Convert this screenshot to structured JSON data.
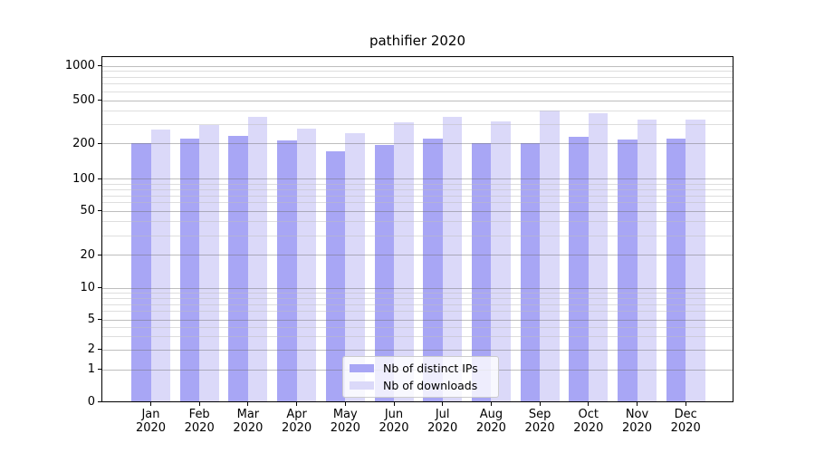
{
  "chart_data": {
    "type": "bar",
    "title": "pathifier 2020",
    "categories": [
      "Jan\n2020",
      "Feb\n2020",
      "Mar\n2020",
      "Apr\n2020",
      "May\n2020",
      "Jun\n2020",
      "Jul\n2020",
      "Aug\n2020",
      "Sep\n2020",
      "Oct\n2020",
      "Nov\n2020",
      "Dec\n2020"
    ],
    "series": [
      {
        "name": "Nb of distinct IPs",
        "color": "#a8a6f5",
        "values": [
          200,
          222,
          235,
          212,
          172,
          193,
          222,
          200,
          201,
          229,
          216,
          220
        ]
      },
      {
        "name": "Nb of downloads",
        "color": "#dbd9f9",
        "values": [
          268,
          295,
          350,
          276,
          250,
          315,
          354,
          320,
          400,
          380,
          330,
          334
        ]
      }
    ],
    "xlabel": "",
    "ylabel": "",
    "yscale": "symlog",
    "ylim": [
      0,
      1200
    ],
    "yticks": [
      0,
      1,
      2,
      5,
      10,
      20,
      50,
      100,
      200,
      500,
      1000
    ],
    "minor_yticks": [
      3,
      4,
      6,
      7,
      8,
      9,
      30,
      40,
      60,
      70,
      80,
      90,
      300,
      400,
      600,
      700,
      800,
      900
    ],
    "grid": "on",
    "legend_position": "lower center"
  },
  "legend": {
    "items": [
      {
        "label": "Nb of distinct IPs",
        "color": "#a8a6f5"
      },
      {
        "label": "Nb of downloads",
        "color": "#dbd9f9"
      }
    ]
  },
  "colors": {
    "distinct_ips": "#a8a6f5",
    "downloads": "#dbd9f9",
    "axis": "#000000",
    "grid_major": "#b9b9b9",
    "grid_minor": "#e3e3e3",
    "background": "#ffffff"
  }
}
